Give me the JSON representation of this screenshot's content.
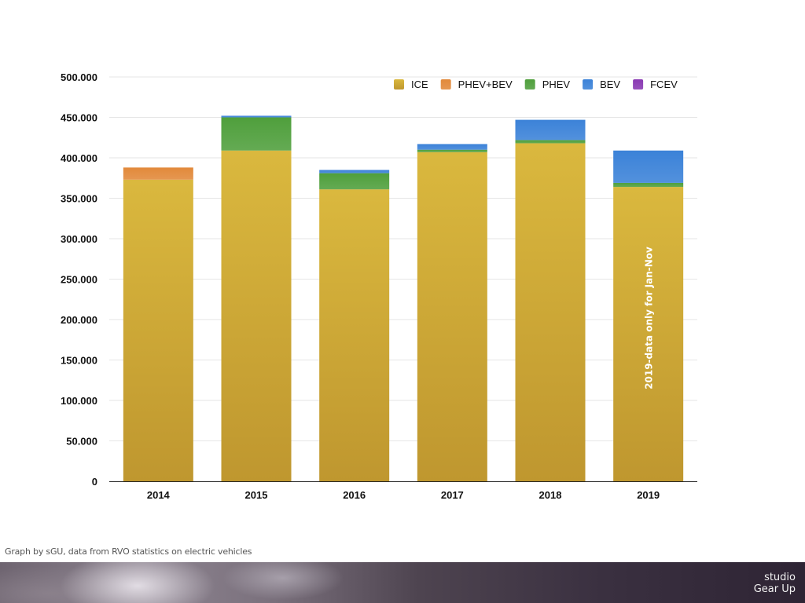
{
  "chart_data": {
    "type": "bar",
    "stacked": true,
    "categories": [
      "2014",
      "2015",
      "2016",
      "2017",
      "2018",
      "2019"
    ],
    "series": [
      {
        "name": "ICE",
        "color": "#d6b23a",
        "values": [
          373000,
          409000,
          361000,
          407000,
          418000,
          364000
        ]
      },
      {
        "name": "PHEV+BEV",
        "color": "#e2893a",
        "values": [
          15000,
          0,
          0,
          0,
          0,
          0
        ]
      },
      {
        "name": "PHEV",
        "color": "#4f9f3c",
        "values": [
          0,
          41000,
          20000,
          3000,
          4000,
          5000
        ]
      },
      {
        "name": "BEV",
        "color": "#3b82d8",
        "values": [
          0,
          2000,
          4000,
          7000,
          25000,
          40000
        ]
      },
      {
        "name": "FCEV",
        "color": "#8a3ab3",
        "values": [
          0,
          0,
          0,
          0,
          0,
          0
        ]
      }
    ],
    "ylim": [
      0,
      500000
    ],
    "yticks": [
      0,
      50000,
      100000,
      150000,
      200000,
      250000,
      300000,
      350000,
      400000,
      450000,
      500000
    ],
    "ytick_labels": [
      "0",
      "50.000",
      "100.000",
      "150.000",
      "200.000",
      "250.000",
      "300.000",
      "350.000",
      "400.000",
      "450.000",
      "500.000"
    ],
    "grid": true,
    "legend_position": "top-right",
    "annotation": "2019-data only for Jan-Nov",
    "xlabel": "",
    "ylabel": "",
    "title": ""
  },
  "credit": "Graph by sGU, data from RVO statistics on electric vehicles",
  "brand": {
    "line1": "studio",
    "line2": "Gear Up"
  }
}
